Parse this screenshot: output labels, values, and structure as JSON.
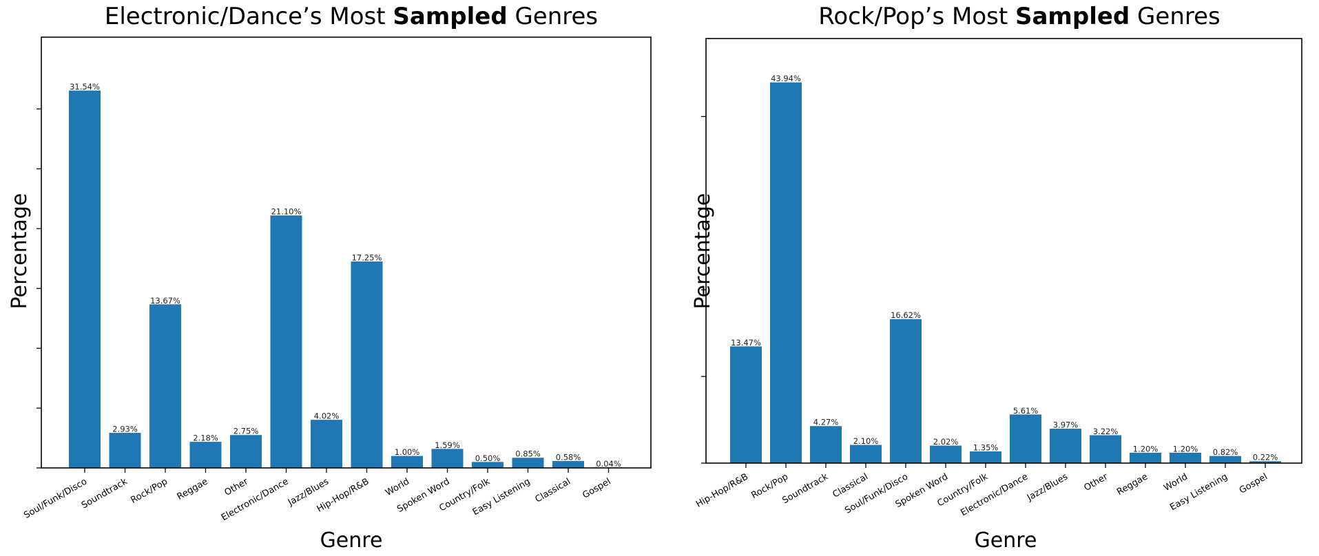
{
  "chart_data": [
    {
      "type": "bar",
      "title": {
        "prefix": "Electronic/Dance’s Most ",
        "bold": "Sampled",
        "suffix": " Genres"
      },
      "xlabel": "Genre",
      "ylabel": "Percentage",
      "ylim": [
        0,
        36
      ],
      "yticks": [
        0,
        5,
        10,
        15,
        20,
        25,
        30
      ],
      "ytick_labels_shown": false,
      "grid": false,
      "color": "#1f77b4",
      "categories": [
        "Soul/Funk/Disco",
        "Soundtrack",
        "Rock/Pop",
        "Reggae",
        "Other",
        "Electronic/Dance",
        "Jazz/Blues",
        "Hip-Hop/R&B",
        "World",
        "Spoken Word",
        "Country/Folk",
        "Easy Listening",
        "Classical",
        "Gospel"
      ],
      "values": [
        31.54,
        2.93,
        13.67,
        2.18,
        2.75,
        21.1,
        4.02,
        17.25,
        1.0,
        1.59,
        0.5,
        0.85,
        0.58,
        0.04
      ],
      "data_labels": [
        "31.54%",
        "2.93%",
        "13.67%",
        "2.18%",
        "2.75%",
        "21.10%",
        "4.02%",
        "17.25%",
        "1.00%",
        "1.59%",
        "0.50%",
        "0.85%",
        "0.58%",
        "0.04%"
      ]
    },
    {
      "type": "bar",
      "title": {
        "prefix": "Rock/Pop’s Most ",
        "bold": "Sampled",
        "suffix": " Genres"
      },
      "xlabel": "Genre",
      "ylabel": "Percentage",
      "ylim": [
        0,
        49
      ],
      "yticks": [
        0,
        10,
        20,
        30,
        40
      ],
      "ytick_labels_shown": false,
      "grid": false,
      "color": "#1f77b4",
      "categories": [
        "Hip-Hop/R&B",
        "Rock/Pop",
        "Soundtrack",
        "Classical",
        "Soul/Funk/Disco",
        "Spoken Word",
        "Country/Folk",
        "Electronic/Dance",
        "Jazz/Blues",
        "Other",
        "Reggae",
        "World",
        "Easy Listening",
        "Gospel"
      ],
      "values": [
        13.47,
        43.94,
        4.27,
        2.1,
        16.62,
        2.02,
        1.35,
        5.61,
        3.97,
        3.22,
        1.2,
        1.2,
        0.82,
        0.22
      ],
      "data_labels": [
        "13.47%",
        "43.94%",
        "4.27%",
        "2.10%",
        "16.62%",
        "2.02%",
        "1.35%",
        "5.61%",
        "3.97%",
        "3.22%",
        "1.20%",
        "1.20%",
        "0.82%",
        "0.22%"
      ]
    }
  ]
}
